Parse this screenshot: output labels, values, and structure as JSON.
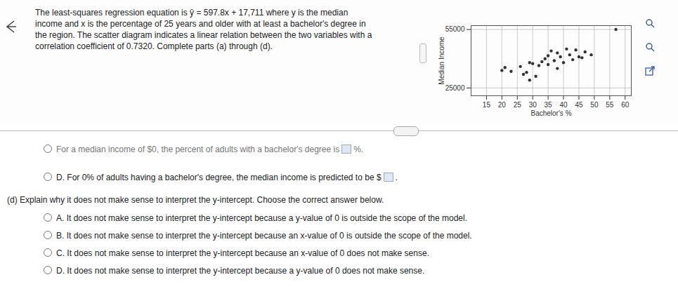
{
  "page": {
    "intro": [
      "The least-squares regression equation is ŷ = 597.8x + 17,711 where y is the median",
      "income and x is the percentage of 25 years and older with at least a bachelor's degree in",
      "the region. The scatter diagram indicates a linear relation between the two variables with a",
      "correlation coefficient of 0.7320. Complete parts (a) through (d)."
    ],
    "partial_option": {
      "before": "For a median income of $0, the percent of adults with a bachelor's degree is",
      "after": "%."
    },
    "option_D_c": {
      "letter": "D.",
      "before": "For 0% of adults having a bachelor's degree, the median income is predicted to be $",
      "after": "."
    },
    "part_d": {
      "prompt": "(d) Explain why it does not make sense to interpret the y-intercept. Choose the correct answer below.",
      "options": [
        {
          "letter": "A.",
          "text": "It does not make sense to interpret the y-intercept because a y-value of 0 is outside the scope of the model."
        },
        {
          "letter": "B.",
          "text": "It does not make sense to interpret the y-intercept because an x-value of 0 is outside the scope of the model."
        },
        {
          "letter": "C.",
          "text": "It does not make sense to interpret the y-intercept because an x-value of 0 does not make sense."
        },
        {
          "letter": "D.",
          "text": "It does not make sense to interpret the y-intercept because a y-value of 0 does not make sense."
        }
      ]
    }
  },
  "chart_data": {
    "type": "scatter",
    "x_label": "Bachelor's %",
    "y_label": "Median Income",
    "x": [
      20,
      21,
      23,
      26,
      27,
      28,
      29,
      29,
      30,
      31,
      32,
      33,
      34,
      35,
      35,
      36,
      37,
      38,
      38,
      39,
      40,
      41,
      42,
      43,
      44,
      45,
      46,
      47,
      49,
      57
    ],
    "values": [
      34000,
      35500,
      33500,
      36000,
      32000,
      33000,
      38000,
      29000,
      37500,
      31000,
      36500,
      38500,
      40000,
      37000,
      41500,
      44000,
      39000,
      35000,
      43000,
      41000,
      38000,
      45000,
      42000,
      39500,
      44500,
      41000,
      40500,
      43500,
      42000,
      55000
    ],
    "xlim": [
      10,
      62
    ],
    "ylim": [
      21000,
      57000
    ],
    "xticks": [
      15,
      20,
      25,
      30,
      35,
      40,
      45,
      50,
      55,
      60
    ],
    "yticks": [
      25000,
      55000
    ],
    "grid": true,
    "color": "#333333",
    "marker": "circle"
  }
}
